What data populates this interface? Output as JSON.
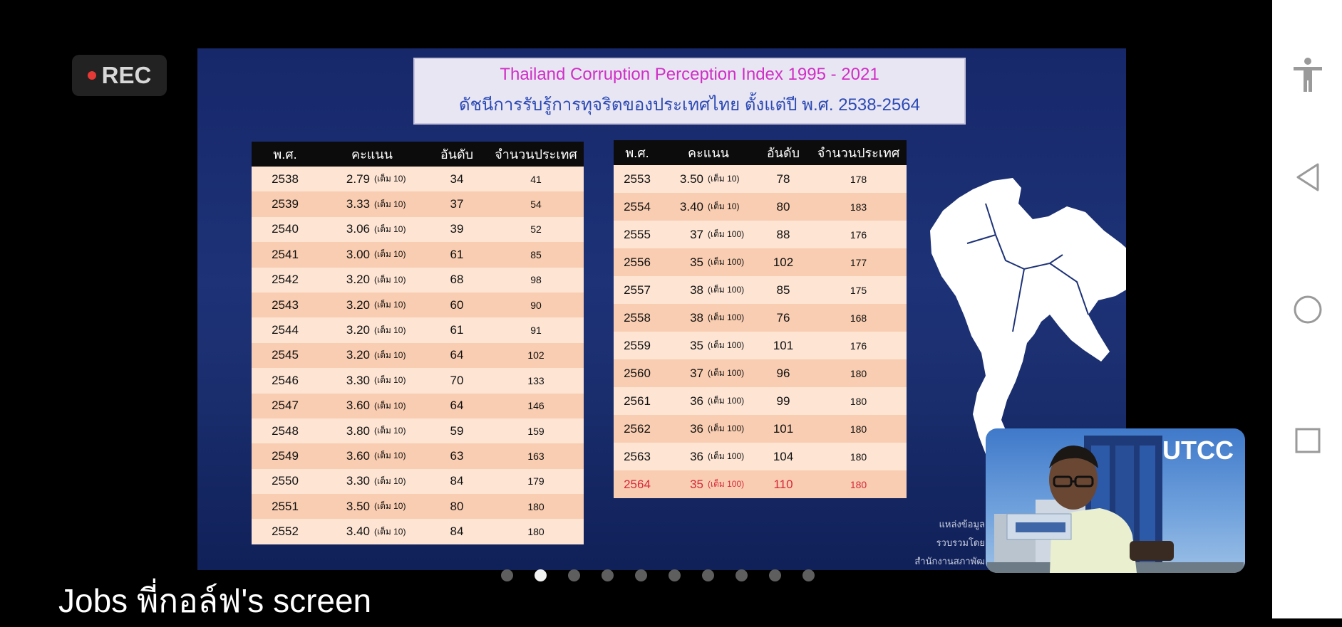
{
  "recording": {
    "label": "REC"
  },
  "slide": {
    "title_en": "Thailand Corruption Perception Index 1995 - 2021",
    "title_th": "ดัชนีการรับรู้การทุจริตของประเทศไทย ตั้งแต่ปี พ.ศ. 2538-2564",
    "headers": {
      "year": "พ.ศ.",
      "score": "คะแนน",
      "rank": "อันดับ",
      "countries": "จำนวนประเทศ"
    },
    "left_table": [
      {
        "year": "2538",
        "score": "2.79",
        "max": "(เต็ม 10)",
        "rank": "34",
        "countries": "41"
      },
      {
        "year": "2539",
        "score": "3.33",
        "max": "(เต็ม 10)",
        "rank": "37",
        "countries": "54"
      },
      {
        "year": "2540",
        "score": "3.06",
        "max": "(เต็ม 10)",
        "rank": "39",
        "countries": "52"
      },
      {
        "year": "2541",
        "score": "3.00",
        "max": "(เต็ม 10)",
        "rank": "61",
        "countries": "85"
      },
      {
        "year": "2542",
        "score": "3.20",
        "max": "(เต็ม 10)",
        "rank": "68",
        "countries": "98"
      },
      {
        "year": "2543",
        "score": "3.20",
        "max": "(เต็ม 10)",
        "rank": "60",
        "countries": "90"
      },
      {
        "year": "2544",
        "score": "3.20",
        "max": "(เต็ม 10)",
        "rank": "61",
        "countries": "91"
      },
      {
        "year": "2545",
        "score": "3.20",
        "max": "(เต็ม 10)",
        "rank": "64",
        "countries": "102"
      },
      {
        "year": "2546",
        "score": "3.30",
        "max": "(เต็ม 10)",
        "rank": "70",
        "countries": "133"
      },
      {
        "year": "2547",
        "score": "3.60",
        "max": "(เต็ม 10)",
        "rank": "64",
        "countries": "146"
      },
      {
        "year": "2548",
        "score": "3.80",
        "max": "(เต็ม 10)",
        "rank": "59",
        "countries": "159"
      },
      {
        "year": "2549",
        "score": "3.60",
        "max": "(เต็ม 10)",
        "rank": "63",
        "countries": "163"
      },
      {
        "year": "2550",
        "score": "3.30",
        "max": "(เต็ม 10)",
        "rank": "84",
        "countries": "179"
      },
      {
        "year": "2551",
        "score": "3.50",
        "max": "(เต็ม 10)",
        "rank": "80",
        "countries": "180"
      },
      {
        "year": "2552",
        "score": "3.40",
        "max": "(เต็ม 10)",
        "rank": "84",
        "countries": "180"
      }
    ],
    "right_table": [
      {
        "year": "2553",
        "score": "3.50",
        "max": "(เต็ม 10)",
        "rank": "78",
        "countries": "178"
      },
      {
        "year": "2554",
        "score": "3.40",
        "max": "(เต็ม 10)",
        "rank": "80",
        "countries": "183"
      },
      {
        "year": "2555",
        "score": "37",
        "max": "(เต็ม 100)",
        "rank": "88",
        "countries": "176"
      },
      {
        "year": "2556",
        "score": "35",
        "max": "(เต็ม 100)",
        "rank": "102",
        "countries": "177"
      },
      {
        "year": "2557",
        "score": "38",
        "max": "(เต็ม 100)",
        "rank": "85",
        "countries": "175"
      },
      {
        "year": "2558",
        "score": "38",
        "max": "(เต็ม 100)",
        "rank": "76",
        "countries": "168"
      },
      {
        "year": "2559",
        "score": "35",
        "max": "(เต็ม 100)",
        "rank": "101",
        "countries": "176"
      },
      {
        "year": "2560",
        "score": "37",
        "max": "(เต็ม 100)",
        "rank": "96",
        "countries": "180"
      },
      {
        "year": "2561",
        "score": "36",
        "max": "(เต็ม 100)",
        "rank": "99",
        "countries": "180"
      },
      {
        "year": "2562",
        "score": "36",
        "max": "(เต็ม 100)",
        "rank": "101",
        "countries": "180"
      },
      {
        "year": "2563",
        "score": "36",
        "max": "(เต็ม 100)",
        "rank": "104",
        "countries": "180"
      },
      {
        "year": "2564",
        "score": "35",
        "max": "(เต็ม 100)",
        "rank": "110",
        "countries": "180",
        "highlight": true
      }
    ],
    "source_lines": [
      "แหล่งข้อมูล",
      "รวบรวมโดย",
      "สำนักงานสภาพัฒ"
    ]
  },
  "webcam": {
    "logo": "UTCC"
  },
  "pager": {
    "count": 10,
    "active_index": 1
  },
  "screen_share_label": "Jobs พี่กอล์ฟ's screen",
  "colors": {
    "slide_bg": "#1d3277",
    "title_en": "#d02fc6",
    "title_th": "#2b4ab5",
    "row_odd": "#fde4d3",
    "row_even": "#f9cdb1",
    "highlight": "#d6283a"
  },
  "nav": {
    "icons": [
      "accessibility-icon",
      "back-icon",
      "home-icon",
      "recents-icon"
    ]
  }
}
